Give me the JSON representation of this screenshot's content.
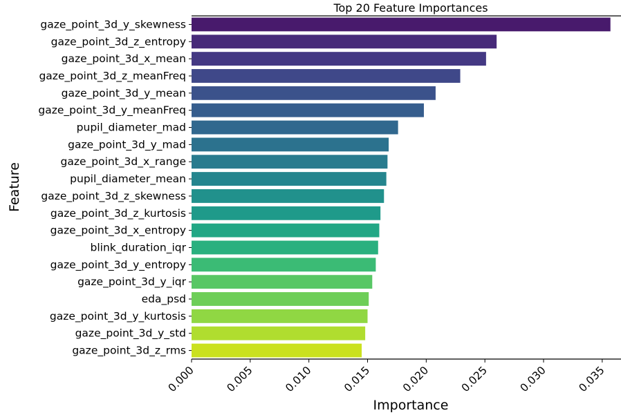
{
  "chart_data": {
    "type": "bar",
    "orientation": "horizontal",
    "title": "Top 20 Feature Importances",
    "xlabel": "Importance",
    "ylabel": "Feature",
    "xlim": [
      0,
      0.0366
    ],
    "xticks": [
      "0.000",
      "0.005",
      "0.010",
      "0.015",
      "0.020",
      "0.025",
      "0.030",
      "0.035"
    ],
    "categories": [
      "gaze_point_3d_y_skewness",
      "gaze_point_3d_z_entropy",
      "gaze_point_3d_x_mean",
      "gaze_point_3d_z_meanFreq",
      "gaze_point_3d_y_mean",
      "gaze_point_3d_y_meanFreq",
      "pupil_diameter_mad",
      "gaze_point_3d_y_mad",
      "gaze_point_3d_x_range",
      "pupil_diameter_mean",
      "gaze_point_3d_z_skewness",
      "gaze_point_3d_z_kurtosis",
      "gaze_point_3d_x_entropy",
      "blink_duration_iqr",
      "gaze_point_3d_y_entropy",
      "gaze_point_3d_y_iqr",
      "eda_psd",
      "gaze_point_3d_y_kurtosis",
      "gaze_point_3d_y_std",
      "gaze_point_3d_z_rms"
    ],
    "values": [
      0.0357,
      0.026,
      0.0251,
      0.0229,
      0.0208,
      0.0198,
      0.0176,
      0.0168,
      0.0167,
      0.0166,
      0.0164,
      0.0161,
      0.016,
      0.0159,
      0.0157,
      0.0154,
      0.0151,
      0.015,
      0.0148,
      0.0145
    ],
    "colors": [
      "#481a6c",
      "#472a79",
      "#443983",
      "#3f4889",
      "#3b528b",
      "#365d8d",
      "#31688e",
      "#2c728e",
      "#297b8e",
      "#25858e",
      "#21918c",
      "#1f9a8a",
      "#22a785",
      "#2ab07f",
      "#3bbb75",
      "#58c765",
      "#6ece58",
      "#90d743",
      "#b0dd2f",
      "#cae11f"
    ],
    "grid": false,
    "legend": "none"
  }
}
